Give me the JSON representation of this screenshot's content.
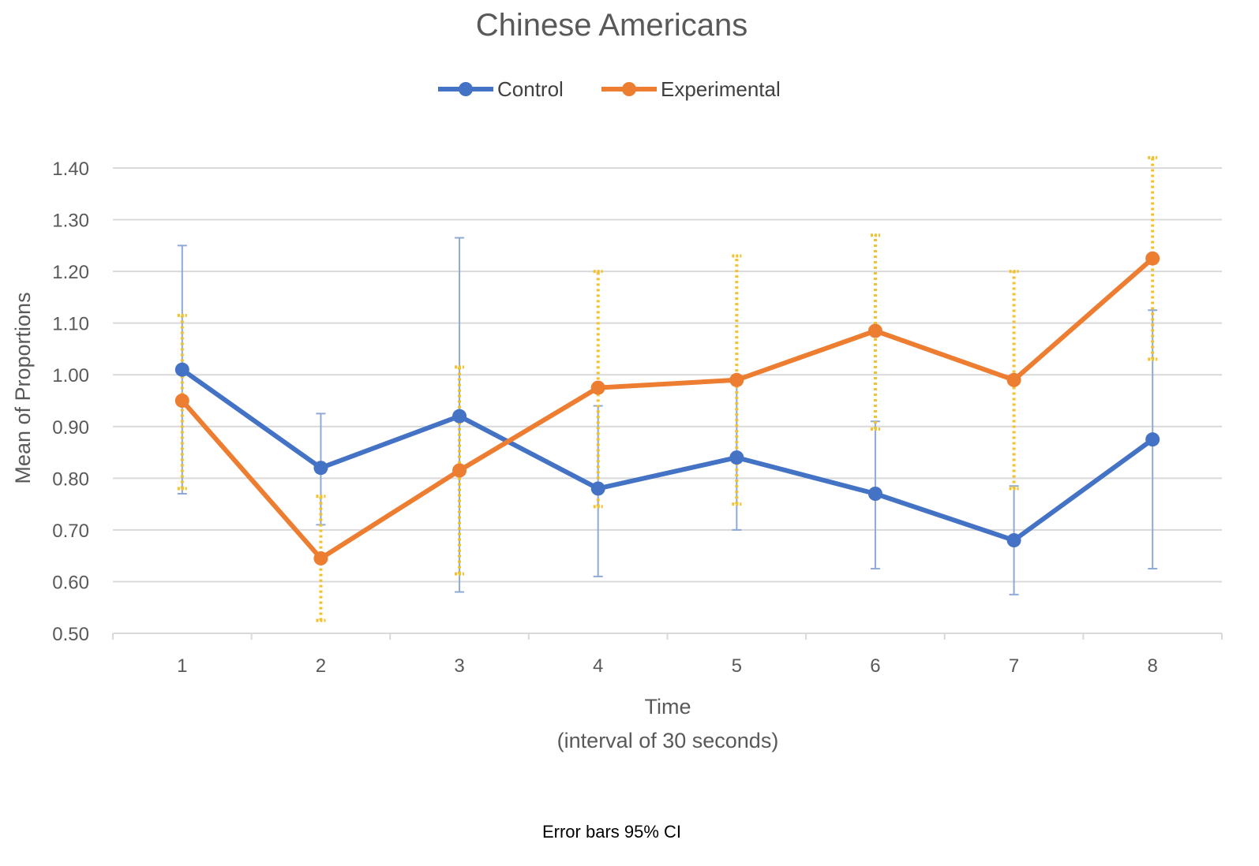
{
  "chart_data": {
    "type": "line",
    "title": "Chinese Americans",
    "xlabel": "Time",
    "xlabel_sub": "(interval of 30 seconds)",
    "ylabel": "Mean of Proportions",
    "categories": [
      "1",
      "2",
      "3",
      "4",
      "5",
      "6",
      "7",
      "8"
    ],
    "ylim": [
      0.5,
      1.4
    ],
    "yticks": [
      "0.50",
      "0.60",
      "0.70",
      "0.80",
      "0.90",
      "1.00",
      "1.10",
      "1.20",
      "1.30",
      "1.40"
    ],
    "grid": true,
    "legend_position": "top",
    "note": "Error bars 95% CI",
    "series": [
      {
        "name": "Control",
        "color": "#4472c4",
        "error_bar_color": "#8fa9d6",
        "error_bar_style": "solid",
        "values": [
          1.01,
          0.82,
          0.92,
          0.78,
          0.84,
          0.77,
          0.68,
          0.875
        ],
        "ci_low": [
          0.77,
          0.71,
          0.58,
          0.61,
          0.7,
          0.625,
          0.575,
          0.625
        ],
        "ci_high": [
          1.25,
          0.925,
          1.265,
          0.94,
          0.98,
          0.91,
          0.785,
          1.125
        ]
      },
      {
        "name": "Experimental",
        "color": "#ed7d31",
        "error_bar_color": "#f2c12e",
        "error_bar_style": "dotted",
        "values": [
          0.95,
          0.645,
          0.815,
          0.975,
          0.99,
          1.085,
          0.99,
          1.225
        ],
        "ci_low": [
          0.78,
          0.525,
          0.615,
          0.745,
          0.75,
          0.895,
          0.78,
          1.03
        ],
        "ci_high": [
          1.115,
          0.765,
          1.015,
          1.2,
          1.23,
          1.27,
          1.2,
          1.42
        ]
      }
    ]
  }
}
